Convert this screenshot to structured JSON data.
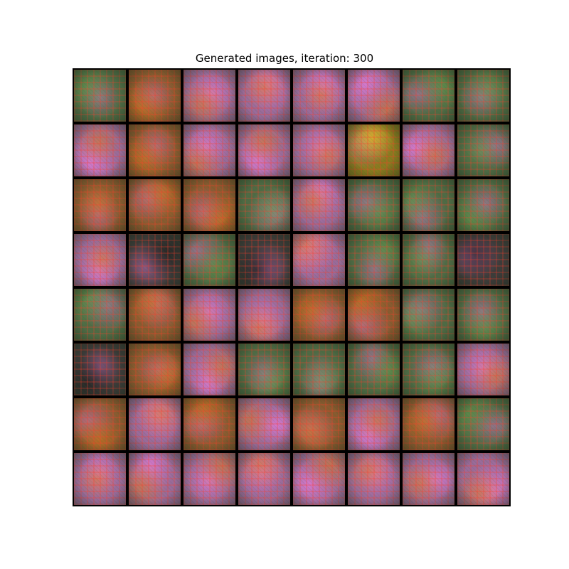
{
  "figure": {
    "title": "Generated images, iteration: 300"
  },
  "grid": {
    "rows": 8,
    "cols": 8,
    "tiles": [
      [
        "green",
        "orange",
        "pink",
        "pink",
        "pink",
        "pink",
        "green",
        "green"
      ],
      [
        "pink",
        "orange",
        "pink",
        "pink",
        "pink",
        "yellow",
        "pink",
        "green"
      ],
      [
        "orange",
        "orange",
        "orange",
        "green",
        "pink",
        "green",
        "green",
        "green"
      ],
      [
        "pink",
        "dark",
        "green",
        "dark",
        "pink",
        "green",
        "green",
        "dark"
      ],
      [
        "green",
        "orange",
        "pink",
        "pink",
        "orange",
        "orange",
        "green",
        "green"
      ],
      [
        "dark",
        "orange",
        "pink",
        "green",
        "green",
        "green",
        "green",
        "pink"
      ],
      [
        "orange",
        "pink",
        "orange",
        "pink",
        "orange",
        "pink",
        "orange",
        "green"
      ],
      [
        "pink",
        "pink",
        "pink",
        "pink",
        "pink",
        "pink",
        "pink",
        "pink"
      ]
    ]
  },
  "palette": {
    "green": "#4f6a45",
    "orange": "#8a5a30",
    "pink": "#9a6a9a",
    "dark": "#3d3a3a",
    "yellow": "#8a7a20",
    "magenta_blob": "#e27ad8",
    "red_texture": "#e04a3a",
    "background": "#ffffff",
    "grid_line": "#000000"
  }
}
